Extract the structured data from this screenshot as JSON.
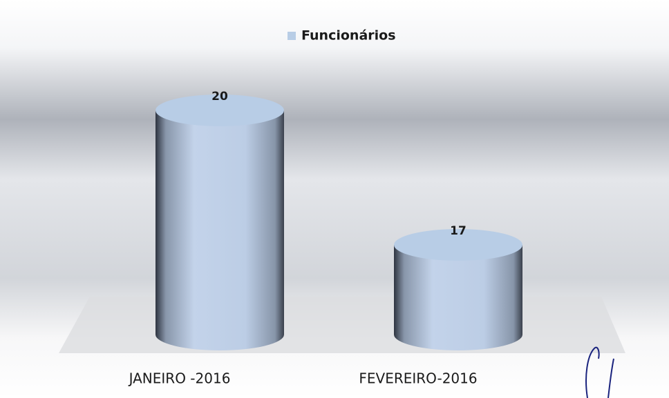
{
  "chart_data": {
    "type": "cylinder",
    "legend": "Funcionários",
    "categories": [
      "JANEIRO -2016",
      "FEVEREIRO-2016"
    ],
    "values": [
      20,
      17
    ],
    "color": "#b8cde6",
    "ylim": [
      15,
      21
    ]
  }
}
